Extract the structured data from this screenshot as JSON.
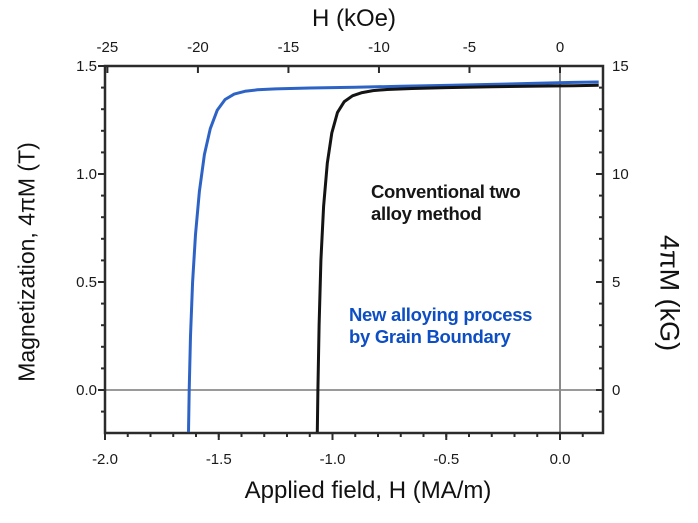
{
  "figure": {
    "background": "#ffffff",
    "axis_color": "#2b2b2b",
    "tick_label_color": "#1a1a1a",
    "tick_label_font_px": 15
  },
  "annotations": {
    "conventional": {
      "line1": "Conventional two",
      "line2": "alloy method",
      "color": "#161616"
    },
    "new_process": {
      "line1": "New alloying process",
      "line2": "by Grain Boundary",
      "color": "#0d4ec4"
    }
  },
  "chart_data": {
    "type": "line",
    "title": "",
    "xlabel_bottom": "Applied field, H (MA/m)",
    "xlabel_top": "H (kOe)",
    "ylabel_left": "Magnetization, 4πM (T)",
    "ylabel_right": "4πM (kG)",
    "grid": false,
    "legend_position": "in-plot text annotations",
    "x_axis_bottom": {
      "label": "Applied field, H (MA/m)",
      "ticks": [
        -2.0,
        -1.5,
        -1.0,
        -0.5,
        0.0
      ],
      "tick_labels": [
        "-2.0",
        "-1.5",
        "-1.0",
        "-0.5",
        "0.0"
      ],
      "minor_step": 0.1,
      "range": [
        -2.01,
        0.19
      ]
    },
    "x_axis_top": {
      "label": "H (kOe)",
      "ticks": [
        -25,
        -20,
        -15,
        -10,
        -5,
        0
      ],
      "tick_labels": [
        "-25",
        "-20",
        "-15",
        "-10",
        "-5",
        "0"
      ],
      "range": [
        -25.3,
        2.4
      ],
      "kOe_per_MA_per_m": 12.56637
    },
    "y_axis_left": {
      "label": "Magnetization, 4πM (T)",
      "ticks": [
        0.0,
        0.5,
        1.0,
        1.5
      ],
      "tick_labels": [
        "0.0",
        "0.5",
        "1.0",
        "1.5"
      ],
      "minor_step": 0.1,
      "range": [
        -0.2,
        1.5
      ]
    },
    "y_axis_right": {
      "label": "4πM (kG)",
      "ticks": [
        0,
        5,
        10,
        15
      ],
      "tick_labels": [
        "0",
        "5",
        "10",
        "15"
      ],
      "minor_step": 1,
      "range": [
        -2,
        15
      ]
    },
    "reference_lines": {
      "x_zero_MA_per_m": 0.0,
      "y_zero_T": 0.0,
      "color_vertical": "#8a8a8a",
      "color_horizontal": "#9a9a9a"
    },
    "series": [
      {
        "name": "New alloying process by Grain Boundary",
        "color": "#2e63c6",
        "line_width": 3,
        "coercivity_MA_per_m": -1.63,
        "remanence_T": 1.42,
        "points": [
          [
            -1.633,
            -0.195
          ],
          [
            -1.63,
            0.0
          ],
          [
            -1.624,
            0.25
          ],
          [
            -1.615,
            0.5
          ],
          [
            -1.602,
            0.72
          ],
          [
            -1.585,
            0.92
          ],
          [
            -1.563,
            1.09
          ],
          [
            -1.537,
            1.21
          ],
          [
            -1.507,
            1.295
          ],
          [
            -1.472,
            1.345
          ],
          [
            -1.432,
            1.37
          ],
          [
            -1.385,
            1.383
          ],
          [
            -1.33,
            1.39
          ],
          [
            -1.25,
            1.394
          ],
          [
            -1.1,
            1.398
          ],
          [
            -0.9,
            1.402
          ],
          [
            -0.7,
            1.406
          ],
          [
            -0.5,
            1.41
          ],
          [
            -0.3,
            1.415
          ],
          [
            -0.1,
            1.42
          ],
          [
            0.06,
            1.424
          ],
          [
            0.17,
            1.426
          ]
        ]
      },
      {
        "name": "Conventional two alloy method",
        "color": "#141414",
        "line_width": 3,
        "coercivity_MA_per_m": -1.06,
        "remanence_T": 1.41,
        "points": [
          [
            -1.067,
            -0.195
          ],
          [
            -1.064,
            0.0
          ],
          [
            -1.059,
            0.3
          ],
          [
            -1.051,
            0.6
          ],
          [
            -1.039,
            0.85
          ],
          [
            -1.023,
            1.05
          ],
          [
            -1.003,
            1.19
          ],
          [
            -0.978,
            1.285
          ],
          [
            -0.948,
            1.335
          ],
          [
            -0.912,
            1.362
          ],
          [
            -0.87,
            1.377
          ],
          [
            -0.822,
            1.386
          ],
          [
            -0.76,
            1.391
          ],
          [
            -0.65,
            1.396
          ],
          [
            -0.5,
            1.4
          ],
          [
            -0.3,
            1.404
          ],
          [
            -0.1,
            1.407
          ],
          [
            0.06,
            1.409
          ],
          [
            0.17,
            1.411
          ]
        ]
      }
    ]
  }
}
